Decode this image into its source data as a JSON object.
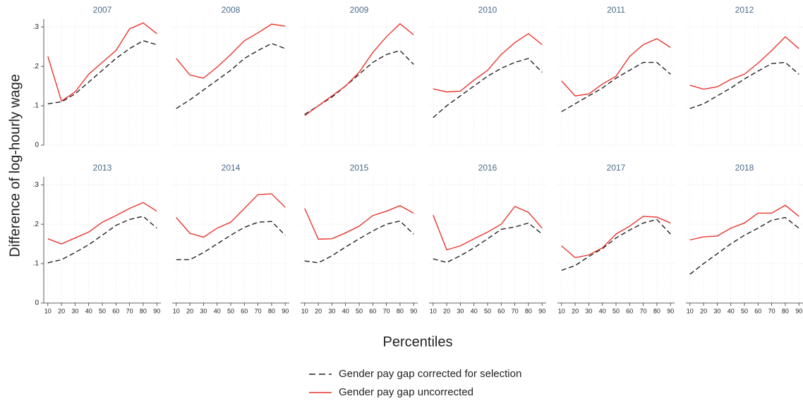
{
  "chart_data": [
    {
      "type": "line",
      "title": "2007",
      "x": [
        10,
        20,
        30,
        40,
        50,
        60,
        70,
        80,
        90
      ],
      "xlim": [
        7,
        93
      ],
      "xticks": [
        10,
        20,
        30,
        40,
        50,
        60,
        70,
        80,
        90
      ],
      "ylim": [
        0,
        0.32
      ],
      "yticks": [
        0,
        {
          "value": 0.1,
          "label": ".1"
        },
        {
          "value": 0.2,
          "label": ".2"
        },
        {
          "value": 0.3,
          "label": ".3"
        }
      ],
      "grid": true,
      "series": [
        {
          "values": [
            0.105,
            0.11,
            0.13,
            0.16,
            0.19,
            0.22,
            0.245,
            0.265,
            0.255
          ]
        },
        {
          "values": [
            0.225,
            0.112,
            0.135,
            0.18,
            0.21,
            0.24,
            0.295,
            0.31,
            0.283
          ]
        }
      ]
    },
    {
      "type": "line",
      "title": "2008",
      "x": [
        10,
        20,
        30,
        40,
        50,
        60,
        70,
        80,
        90
      ],
      "xlim": [
        7,
        93
      ],
      "xticks": [
        10,
        20,
        30,
        40,
        50,
        60,
        70,
        80,
        90
      ],
      "ylim": [
        0,
        0.32
      ],
      "yticks": [
        0,
        {
          "value": 0.1,
          "label": ".1"
        },
        {
          "value": 0.2,
          "label": ".2"
        },
        {
          "value": 0.3,
          "label": ".3"
        }
      ],
      "grid": true,
      "series": [
        {
          "values": [
            0.093,
            0.115,
            0.14,
            0.165,
            0.19,
            0.22,
            0.24,
            0.258,
            0.245
          ]
        },
        {
          "values": [
            0.22,
            0.178,
            0.17,
            0.198,
            0.23,
            0.265,
            0.285,
            0.307,
            0.302
          ]
        }
      ]
    },
    {
      "type": "line",
      "title": "2009",
      "x": [
        10,
        20,
        30,
        40,
        50,
        60,
        70,
        80,
        90
      ],
      "xlim": [
        7,
        93
      ],
      "xticks": [
        10,
        20,
        30,
        40,
        50,
        60,
        70,
        80,
        90
      ],
      "ylim": [
        0,
        0.32
      ],
      "yticks": [
        0,
        {
          "value": 0.1,
          "label": ".1"
        },
        {
          "value": 0.2,
          "label": ".2"
        },
        {
          "value": 0.3,
          "label": ".3"
        }
      ],
      "grid": true,
      "series": [
        {
          "values": [
            0.078,
            0.1,
            0.122,
            0.15,
            0.18,
            0.21,
            0.23,
            0.24,
            0.205
          ]
        },
        {
          "values": [
            0.075,
            0.1,
            0.125,
            0.15,
            0.185,
            0.235,
            0.275,
            0.308,
            0.28
          ]
        }
      ]
    },
    {
      "type": "line",
      "title": "2010",
      "x": [
        10,
        20,
        30,
        40,
        50,
        60,
        70,
        80,
        90
      ],
      "xlim": [
        7,
        93
      ],
      "xticks": [
        10,
        20,
        30,
        40,
        50,
        60,
        70,
        80,
        90
      ],
      "ylim": [
        0,
        0.32
      ],
      "yticks": [
        0,
        {
          "value": 0.1,
          "label": ".1"
        },
        {
          "value": 0.2,
          "label": ".2"
        },
        {
          "value": 0.3,
          "label": ".3"
        }
      ],
      "grid": true,
      "series": [
        {
          "values": [
            0.07,
            0.1,
            0.125,
            0.15,
            0.175,
            0.195,
            0.21,
            0.22,
            0.185
          ]
        },
        {
          "values": [
            0.143,
            0.135,
            0.137,
            0.165,
            0.19,
            0.23,
            0.26,
            0.283,
            0.255
          ]
        }
      ]
    },
    {
      "type": "line",
      "title": "2011",
      "x": [
        10,
        20,
        30,
        40,
        50,
        60,
        70,
        80,
        90
      ],
      "xlim": [
        7,
        93
      ],
      "xticks": [
        10,
        20,
        30,
        40,
        50,
        60,
        70,
        80,
        90
      ],
      "ylim": [
        0,
        0.32
      ],
      "yticks": [
        0,
        {
          "value": 0.1,
          "label": ".1"
        },
        {
          "value": 0.2,
          "label": ".2"
        },
        {
          "value": 0.3,
          "label": ".3"
        }
      ],
      "grid": true,
      "series": [
        {
          "values": [
            0.085,
            0.105,
            0.125,
            0.145,
            0.17,
            0.19,
            0.21,
            0.21,
            0.18
          ]
        },
        {
          "values": [
            0.163,
            0.125,
            0.13,
            0.155,
            0.175,
            0.225,
            0.255,
            0.27,
            0.248
          ]
        }
      ]
    },
    {
      "type": "line",
      "title": "2012",
      "x": [
        10,
        20,
        30,
        40,
        50,
        60,
        70,
        80,
        90
      ],
      "xlim": [
        7,
        93
      ],
      "xticks": [
        10,
        20,
        30,
        40,
        50,
        60,
        70,
        80,
        90
      ],
      "ylim": [
        0,
        0.32
      ],
      "yticks": [
        0,
        {
          "value": 0.1,
          "label": ".1"
        },
        {
          "value": 0.2,
          "label": ".2"
        },
        {
          "value": 0.3,
          "label": ".3"
        }
      ],
      "grid": true,
      "series": [
        {
          "values": [
            0.093,
            0.105,
            0.125,
            0.145,
            0.168,
            0.188,
            0.207,
            0.21,
            0.18
          ]
        },
        {
          "values": [
            0.152,
            0.142,
            0.148,
            0.167,
            0.18,
            0.208,
            0.24,
            0.275,
            0.245
          ]
        }
      ]
    },
    {
      "type": "line",
      "title": "2013",
      "x": [
        10,
        20,
        30,
        40,
        50,
        60,
        70,
        80,
        90
      ],
      "xlim": [
        7,
        93
      ],
      "xticks": [
        10,
        20,
        30,
        40,
        50,
        60,
        70,
        80,
        90
      ],
      "ylim": [
        0,
        0.32
      ],
      "yticks": [
        0,
        {
          "value": 0.1,
          "label": ".1"
        },
        {
          "value": 0.2,
          "label": ".2"
        },
        {
          "value": 0.3,
          "label": ".3"
        }
      ],
      "grid": true,
      "series": [
        {
          "values": [
            0.102,
            0.11,
            0.128,
            0.148,
            0.172,
            0.197,
            0.212,
            0.22,
            0.19
          ]
        },
        {
          "values": [
            0.163,
            0.15,
            0.165,
            0.18,
            0.205,
            0.222,
            0.24,
            0.255,
            0.233
          ]
        }
      ]
    },
    {
      "type": "line",
      "title": "2014",
      "x": [
        10,
        20,
        30,
        40,
        50,
        60,
        70,
        80,
        90
      ],
      "xlim": [
        7,
        93
      ],
      "xticks": [
        10,
        20,
        30,
        40,
        50,
        60,
        70,
        80,
        90
      ],
      "ylim": [
        0,
        0.32
      ],
      "yticks": [
        0,
        {
          "value": 0.1,
          "label": ".1"
        },
        {
          "value": 0.2,
          "label": ".2"
        },
        {
          "value": 0.3,
          "label": ".3"
        }
      ],
      "grid": true,
      "series": [
        {
          "values": [
            0.11,
            0.11,
            0.128,
            0.15,
            0.172,
            0.192,
            0.205,
            0.207,
            0.172
          ]
        },
        {
          "values": [
            0.217,
            0.177,
            0.167,
            0.19,
            0.205,
            0.24,
            0.275,
            0.277,
            0.243
          ]
        }
      ]
    },
    {
      "type": "line",
      "title": "2015",
      "x": [
        10,
        20,
        30,
        40,
        50,
        60,
        70,
        80,
        90
      ],
      "xlim": [
        7,
        93
      ],
      "xticks": [
        10,
        20,
        30,
        40,
        50,
        60,
        70,
        80,
        90
      ],
      "ylim": [
        0,
        0.32
      ],
      "yticks": [
        0,
        {
          "value": 0.1,
          "label": ".1"
        },
        {
          "value": 0.2,
          "label": ".2"
        },
        {
          "value": 0.3,
          "label": ".3"
        }
      ],
      "grid": true,
      "series": [
        {
          "values": [
            0.107,
            0.102,
            0.12,
            0.142,
            0.163,
            0.183,
            0.2,
            0.208,
            0.175
          ]
        },
        {
          "values": [
            0.24,
            0.162,
            0.163,
            0.178,
            0.195,
            0.222,
            0.233,
            0.247,
            0.228
          ]
        }
      ]
    },
    {
      "type": "line",
      "title": "2016",
      "x": [
        10,
        20,
        30,
        40,
        50,
        60,
        70,
        80,
        90
      ],
      "xlim": [
        7,
        93
      ],
      "xticks": [
        10,
        20,
        30,
        40,
        50,
        60,
        70,
        80,
        90
      ],
      "ylim": [
        0,
        0.32
      ],
      "yticks": [
        0,
        {
          "value": 0.1,
          "label": ".1"
        },
        {
          "value": 0.2,
          "label": ".2"
        },
        {
          "value": 0.3,
          "label": ".3"
        }
      ],
      "grid": true,
      "series": [
        {
          "values": [
            0.112,
            0.103,
            0.12,
            0.14,
            0.163,
            0.187,
            0.193,
            0.203,
            0.175
          ]
        },
        {
          "values": [
            0.223,
            0.135,
            0.145,
            0.163,
            0.18,
            0.2,
            0.245,
            0.23,
            0.19
          ]
        }
      ]
    },
    {
      "type": "line",
      "title": "2017",
      "x": [
        10,
        20,
        30,
        40,
        50,
        60,
        70,
        80,
        90
      ],
      "xlim": [
        7,
        93
      ],
      "xticks": [
        10,
        20,
        30,
        40,
        50,
        60,
        70,
        80,
        90
      ],
      "ylim": [
        0,
        0.32
      ],
      "yticks": [
        0,
        {
          "value": 0.1,
          "label": ".1"
        },
        {
          "value": 0.2,
          "label": ".2"
        },
        {
          "value": 0.3,
          "label": ".3"
        }
      ],
      "grid": true,
      "series": [
        {
          "values": [
            0.083,
            0.095,
            0.118,
            0.138,
            0.165,
            0.185,
            0.203,
            0.212,
            0.175
          ]
        },
        {
          "values": [
            0.145,
            0.115,
            0.122,
            0.14,
            0.175,
            0.195,
            0.22,
            0.218,
            0.203
          ]
        }
      ]
    },
    {
      "type": "line",
      "title": "2018",
      "x": [
        10,
        20,
        30,
        40,
        50,
        60,
        70,
        80,
        90
      ],
      "xlim": [
        7,
        93
      ],
      "xticks": [
        10,
        20,
        30,
        40,
        50,
        60,
        70,
        80,
        90
      ],
      "ylim": [
        0,
        0.32
      ],
      "yticks": [
        0,
        {
          "value": 0.1,
          "label": ".1"
        },
        {
          "value": 0.2,
          "label": ".2"
        },
        {
          "value": 0.3,
          "label": ".3"
        }
      ],
      "grid": true,
      "series": [
        {
          "values": [
            0.073,
            0.1,
            0.125,
            0.15,
            0.172,
            0.19,
            0.21,
            0.217,
            0.19
          ]
        },
        {
          "values": [
            0.16,
            0.168,
            0.17,
            0.19,
            0.203,
            0.228,
            0.228,
            0.248,
            0.22
          ]
        }
      ]
    }
  ],
  "ylabel": "Difference of log-hourly wage",
  "xlabel": "Percentiles",
  "legend": [
    {
      "name": "Gender pay gap corrected for selection",
      "color": "#222222",
      "dashed": true
    },
    {
      "name": "Gender pay gap uncorrected",
      "color": "#e8352e",
      "dashed": false
    }
  ]
}
